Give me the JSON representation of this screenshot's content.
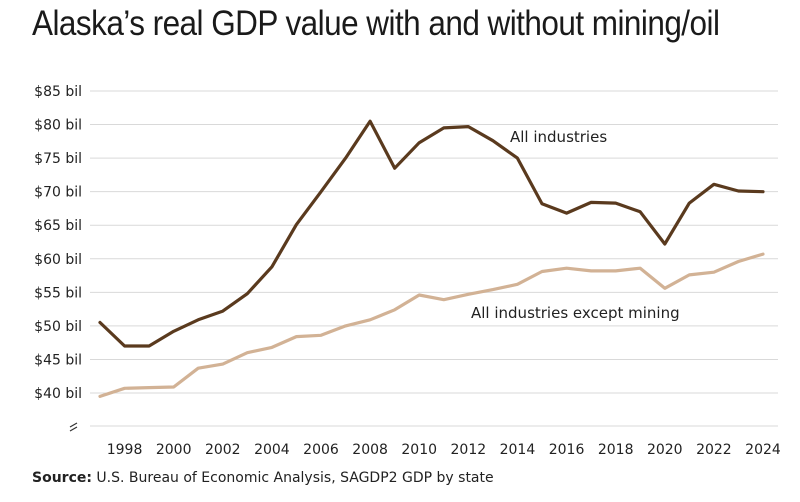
{
  "title": "Alaska’s real GDP value with and without mining/oil",
  "source": {
    "label": "Source:",
    "text": "U.S. Bureau of Economic Analysis, SAGDP2 GDP by state"
  },
  "chart_data": {
    "type": "line",
    "title": "Alaska’s real GDP value with and without mining/oil",
    "xlabel": "",
    "ylabel": "",
    "x": [
      1997,
      1998,
      1999,
      2000,
      2001,
      2002,
      2003,
      2004,
      2005,
      2006,
      2007,
      2008,
      2009,
      2010,
      2011,
      2012,
      2013,
      2014,
      2015,
      2016,
      2017,
      2018,
      2019,
      2020,
      2021,
      2022,
      2023,
      2024
    ],
    "x_ticks": [
      1998,
      2000,
      2002,
      2004,
      2006,
      2008,
      2010,
      2012,
      2014,
      2016,
      2018,
      2020,
      2022,
      2024
    ],
    "y_ticks": [
      40,
      45,
      50,
      55,
      60,
      65,
      70,
      75,
      80,
      85
    ],
    "y_tick_labels": [
      "$40 bil",
      "$45 bil",
      "$50 bil",
      "$55 bil",
      "$60 bil",
      "$65 bil",
      "$70 bil",
      "$75 bil",
      "$80 bil",
      "$85 bil"
    ],
    "ylim": [
      35,
      85
    ],
    "axis_break": true,
    "grid": "horizontal",
    "series": [
      {
        "name": "All industries",
        "color": "#5a3a1e",
        "values": [
          50.5,
          47.0,
          47.0,
          49.2,
          50.9,
          52.2,
          54.8,
          58.8,
          65.1,
          70.0,
          75.0,
          80.5,
          73.5,
          77.3,
          79.5,
          79.7,
          77.6,
          75.0,
          68.2,
          66.8,
          68.4,
          68.3,
          67.0,
          62.2,
          68.3,
          71.1,
          70.1,
          70.0
        ]
      },
      {
        "name": "All industries except mining",
        "color": "#d2b295",
        "values": [
          39.5,
          40.7,
          40.8,
          40.9,
          43.7,
          44.3,
          46.0,
          46.8,
          48.4,
          48.6,
          50.0,
          50.9,
          52.4,
          54.6,
          53.9,
          54.7,
          55.4,
          56.2,
          58.1,
          58.6,
          58.2,
          58.2,
          58.6,
          55.6,
          57.6,
          58.0,
          59.6,
          60.7
        ]
      }
    ]
  }
}
